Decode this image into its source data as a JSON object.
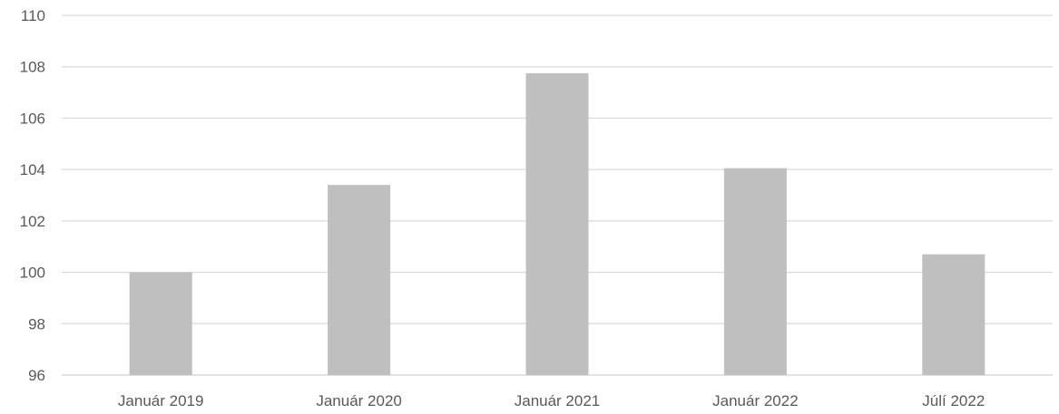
{
  "chart_data": {
    "type": "bar",
    "title": "",
    "xlabel": "",
    "ylabel": "",
    "categories": [
      "Január 2019",
      "Január 2020",
      "Január 2021",
      "Január 2022",
      "Júlí 2022"
    ],
    "values": [
      100.0,
      103.4,
      107.75,
      104.05,
      100.7
    ],
    "ylim": [
      96,
      110
    ],
    "yticks": [
      96,
      98,
      100,
      102,
      104,
      106,
      108,
      110
    ],
    "grid": true,
    "legend": "none",
    "colors": {
      "bar": "#bfbfbf",
      "grid": "#d9d9d9",
      "text": "#595959"
    }
  }
}
